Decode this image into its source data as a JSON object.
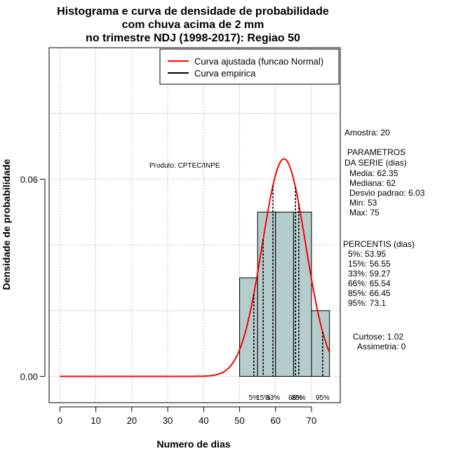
{
  "title": [
    "Histograma e curva de densidade de probabilidade",
    "com chuva acima de 2 mm",
    "no trimestre NDJ (1998-2017): Regiao 50"
  ],
  "xlabel": "Numero de dias",
  "ylabel": "Densidade de probabilidade",
  "credit": "Produto: CPTEC/INPE",
  "legend": {
    "items": [
      {
        "label": "Curva ajustada (funcao Normal)",
        "color": "#ff0000"
      },
      {
        "label": "Curva empirica",
        "color": "#000000"
      }
    ]
  },
  "stats": {
    "sample": "Amostra: 20",
    "params_header": [
      "PARAMETROS",
      "DA SERIE (dias)"
    ],
    "params": [
      "Media: 62.35",
      "Mediana: 62",
      "Desvio padrao: 6.03",
      "Min: 53",
      "Max: 75"
    ],
    "percentiles_header": "PERCENTIS (dias)",
    "percentiles": [
      "5%: 53.95",
      "15%: 56.55",
      "33%: 59.27",
      "66%: 65.54",
      "85%: 66.45",
      "95%: 73.1"
    ],
    "kurtosis": "Curtose: 1.02",
    "skewness": "Assimetria: 0"
  },
  "chart_data": {
    "type": "histogram",
    "xlim": [
      -3,
      78
    ],
    "ylim": [
      -0.008,
      0.1
    ],
    "xticks": [
      0,
      10,
      20,
      30,
      40,
      50,
      60,
      70
    ],
    "yticks": [
      0.0,
      0.06
    ],
    "ytick_labels": [
      "0.00",
      "0.06"
    ],
    "bins": [
      {
        "x0": 50,
        "x1": 55,
        "density": 0.03
      },
      {
        "x0": 55,
        "x1": 60,
        "density": 0.05
      },
      {
        "x0": 60,
        "x1": 65,
        "density": 0.05
      },
      {
        "x0": 65,
        "x1": 70,
        "density": 0.05
      },
      {
        "x0": 70,
        "x1": 75,
        "density": 0.02
      }
    ],
    "bar_color": "#b4cccc",
    "normal_fit": {
      "mean": 62.35,
      "sd": 6.03,
      "color": "#ff0000"
    },
    "percentile_lines": [
      {
        "label": "5%",
        "x": 53.95
      },
      {
        "label": "15%",
        "x": 56.55
      },
      {
        "label": "33%",
        "x": 59.27
      },
      {
        "label": "66%",
        "x": 65.54
      },
      {
        "label": "85%",
        "x": 66.45
      },
      {
        "label": "95%",
        "x": 73.1
      }
    ],
    "grid": true
  }
}
